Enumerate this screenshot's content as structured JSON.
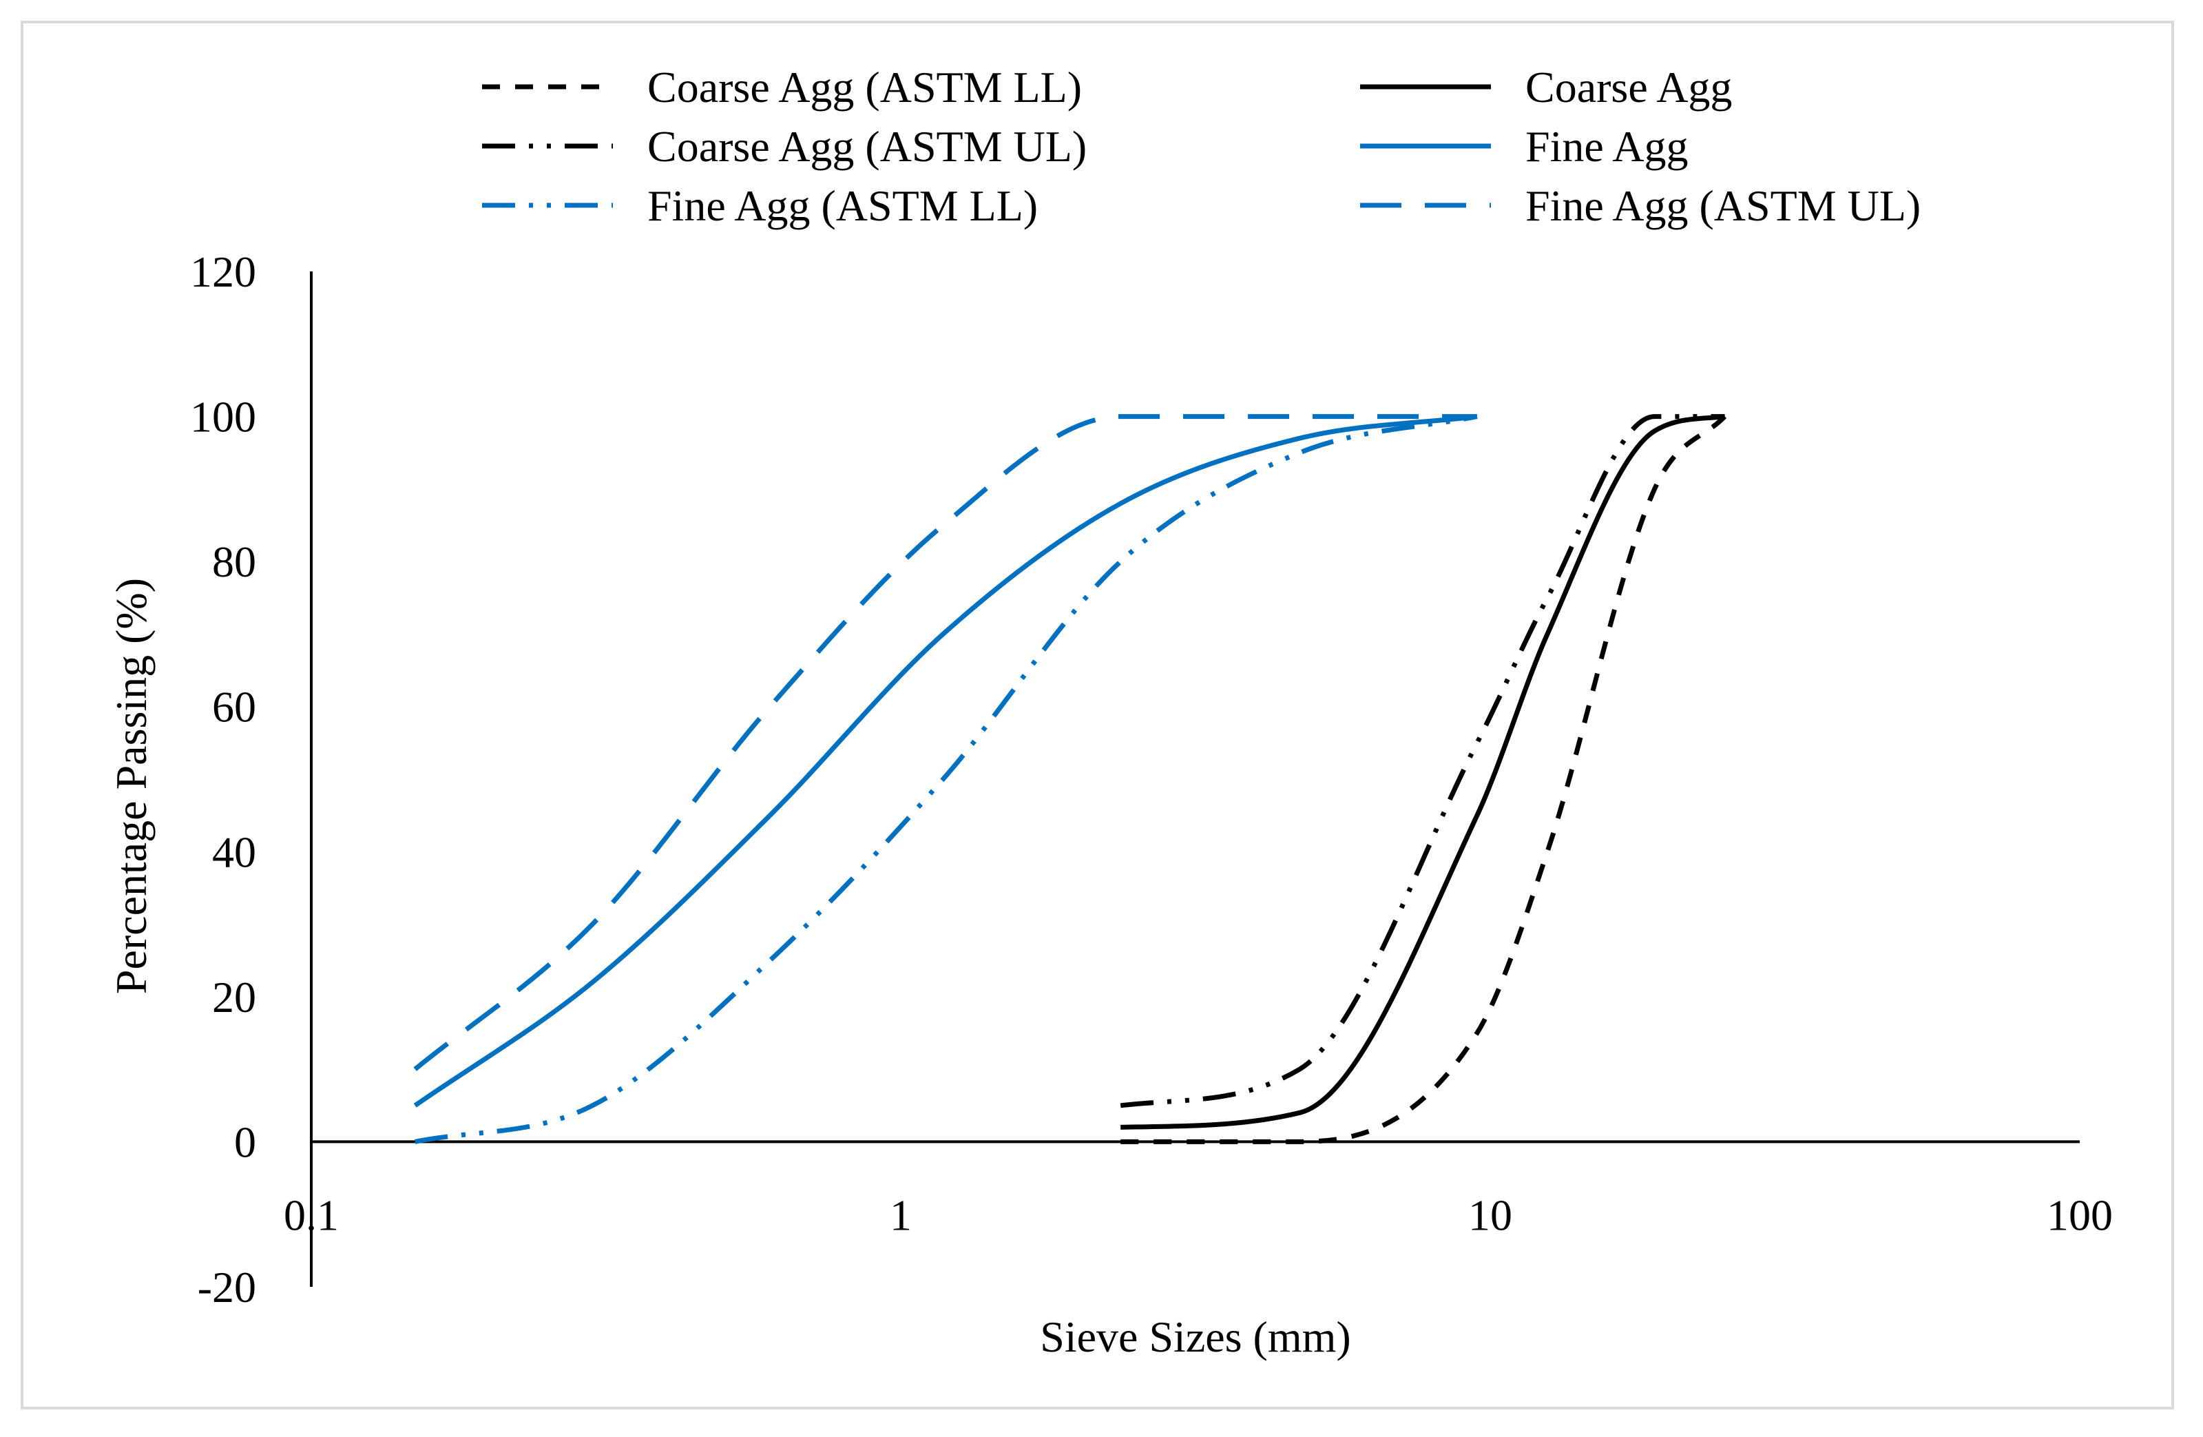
{
  "chart_data": {
    "type": "line",
    "title": "",
    "xlabel": "Sieve Sizes (mm)",
    "ylabel": "Percentage Passing (%)",
    "xscale": "log",
    "xlim": [
      0.1,
      100
    ],
    "ylim": [
      -20,
      120
    ],
    "x_ticks": [
      0.1,
      1,
      10,
      100
    ],
    "x_tick_labels": [
      "0.1",
      "1",
      "10",
      "100"
    ],
    "y_ticks": [
      -20,
      0,
      20,
      40,
      60,
      80,
      100,
      120
    ],
    "y_tick_labels": [
      "-20",
      "0",
      "20",
      "40",
      "60",
      "80",
      "100",
      "120"
    ],
    "grid": false,
    "legend_position": "top",
    "series": [
      {
        "name": "Coarse Agg (ASTM LL)",
        "color": "#000000",
        "dash": "short-dash",
        "x": [
          2.36,
          4.75,
          9.5,
          12.5,
          19,
          25
        ],
        "y": [
          0,
          0,
          15,
          40,
          90,
          100
        ]
      },
      {
        "name": "Coarse Agg",
        "color": "#000000",
        "dash": "solid",
        "x": [
          2.36,
          4.75,
          9.5,
          12.5,
          19,
          25
        ],
        "y": [
          2,
          4,
          45,
          70,
          98,
          100
        ]
      },
      {
        "name": "Coarse Agg (ASTM UL)",
        "color": "#000000",
        "dash": "dash-dot-dot",
        "x": [
          2.36,
          4.75,
          9.5,
          12.5,
          19,
          25
        ],
        "y": [
          5,
          10,
          55,
          75,
          100,
          100
        ]
      },
      {
        "name": "Fine Agg",
        "color": "#0070c0",
        "dash": "solid",
        "x": [
          0.15,
          0.3,
          0.6,
          1.18,
          2.36,
          4.75,
          9.5
        ],
        "y": [
          5,
          22,
          45,
          70,
          88,
          97,
          100
        ]
      },
      {
        "name": "Fine Agg (ASTM LL)",
        "color": "#0070c0",
        "dash": "dash-dot-dot",
        "x": [
          0.15,
          0.3,
          0.6,
          1.18,
          2.36,
          4.75,
          9.5
        ],
        "y": [
          0,
          5,
          25,
          50,
          80,
          95,
          100
        ]
      },
      {
        "name": "Fine Agg (ASTM UL)",
        "color": "#0070c0",
        "dash": "long-dash",
        "x": [
          0.15,
          0.3,
          0.6,
          1.18,
          2.36,
          4.75,
          9.5
        ],
        "y": [
          10,
          30,
          60,
          85,
          100,
          100,
          100
        ]
      }
    ]
  }
}
